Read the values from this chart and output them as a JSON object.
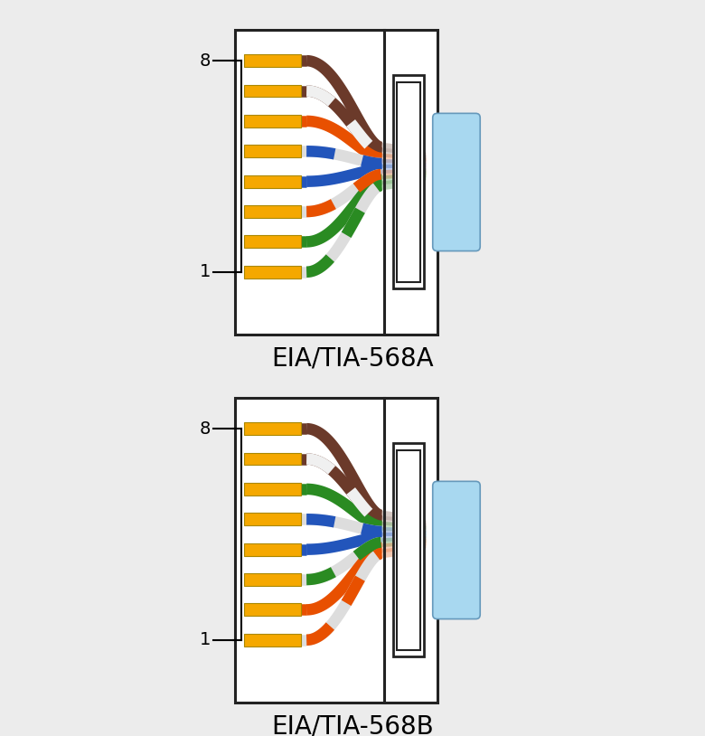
{
  "background_color": "#ececec",
  "title_568A": "EIA/TIA-568A",
  "title_568B": "EIA/TIA-568B",
  "title_fontsize": 20,
  "wire_colors_568A": [
    {
      "solid": "#6B3A2A",
      "stripe": null
    },
    {
      "solid": "#6B3A2A",
      "stripe": "#FFFFFF"
    },
    {
      "solid": "#E85000",
      "stripe": null
    },
    {
      "solid": "#FFFFFF",
      "stripe": "#2255BB"
    },
    {
      "solid": "#2255BB",
      "stripe": null
    },
    {
      "solid": "#FFFFFF",
      "stripe": "#E85000"
    },
    {
      "solid": "#2A8B22",
      "stripe": null
    },
    {
      "solid": "#FFFFFF",
      "stripe": "#2A8B22"
    }
  ],
  "wire_colors_568B": [
    {
      "solid": "#6B3A2A",
      "stripe": null
    },
    {
      "solid": "#6B3A2A",
      "stripe": "#FFFFFF"
    },
    {
      "solid": "#2A8B22",
      "stripe": null
    },
    {
      "solid": "#FFFFFF",
      "stripe": "#2255BB"
    },
    {
      "solid": "#2255BB",
      "stripe": null
    },
    {
      "solid": "#FFFFFF",
      "stripe": "#2A8B22"
    },
    {
      "solid": "#E85000",
      "stripe": null
    },
    {
      "solid": "#FFFFFF",
      "stripe": "#E85000"
    }
  ],
  "yellow_color": "#F5A800",
  "plug_color": "#A8D8F0",
  "outer_box_color": "#222222",
  "wire_lw": 9,
  "fade_lw": 7
}
